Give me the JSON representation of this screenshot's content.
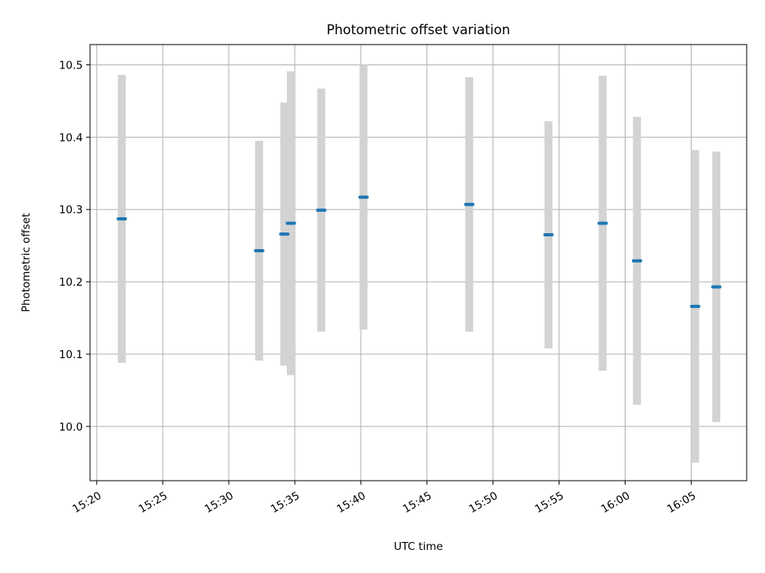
{
  "chart_data": {
    "type": "scatter",
    "title": "Photometric offset variation",
    "xlabel": "UTC time",
    "ylabel": "Photometric offset",
    "x_ticks": [
      "15:20",
      "15:25",
      "15:30",
      "15:35",
      "15:40",
      "15:45",
      "15:50",
      "15:55",
      "16:00",
      "16:05"
    ],
    "y_ticks": [
      "10.0",
      "10.1",
      "10.2",
      "10.3",
      "10.4",
      "10.5"
    ],
    "xlim": [
      "15:19.5",
      "16:09.2"
    ],
    "ylim": [
      9.925,
      10.528
    ],
    "grid": true,
    "errorbar_color": "#d3d3d3",
    "marker_color": "#1f77b4",
    "points": [
      {
        "x": "15:21.9",
        "y": 10.287,
        "yerr": 0.199
      },
      {
        "x": "15:32.3",
        "y": 10.243,
        "yerr": 0.152
      },
      {
        "x": "15:34.2",
        "y": 10.266,
        "yerr": 0.182
      },
      {
        "x": "15:34.7",
        "y": 10.281,
        "yerr": 0.21
      },
      {
        "x": "15:37.0",
        "y": 10.299,
        "yerr": 0.168
      },
      {
        "x": "15:40.2",
        "y": 10.317,
        "yerr": 0.183
      },
      {
        "x": "15:48.2",
        "y": 10.307,
        "yerr": 0.176
      },
      {
        "x": "15:54.2",
        "y": 10.265,
        "yerr": 0.157
      },
      {
        "x": "15:58.3",
        "y": 10.281,
        "yerr": 0.204
      },
      {
        "x": "16:00.9",
        "y": 10.229,
        "yerr": 0.199
      },
      {
        "x": "16:05.3",
        "y": 10.166,
        "yerr": 0.216
      },
      {
        "x": "16:06.9",
        "y": 10.193,
        "yerr": 0.187
      }
    ]
  }
}
